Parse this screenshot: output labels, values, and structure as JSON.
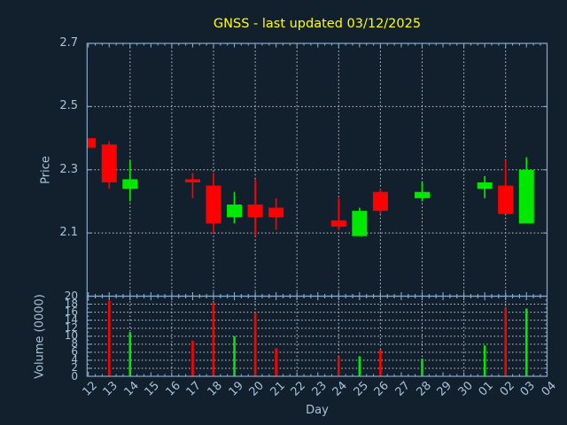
{
  "window": {
    "title": "GNSS - last updated 03/12/2025"
  },
  "colors": {
    "background": "#12202e",
    "spine": "#85aacc",
    "text": "#a8c2d8",
    "title": "#ffff00",
    "grid": "#c9cdd1",
    "up": "#00e800",
    "down": "#ff0000"
  },
  "chart_data": {
    "type": "candlestick",
    "title": "GNSS - last updated 03/12/2025",
    "xlabel": "Day",
    "legend": "none",
    "price_axis": {
      "label": "Price",
      "ticks": [
        2.7,
        2.5,
        2.3,
        2.1
      ],
      "lim": [
        1.9,
        2.7
      ],
      "grid": "dashed"
    },
    "volume_axis": {
      "label": "Volume (0000)",
      "ticks": [
        20,
        18,
        16,
        14,
        12,
        10,
        8,
        6,
        4,
        2,
        0
      ],
      "lim": [
        0,
        20
      ],
      "grid": "dashed"
    },
    "x_categories": [
      "12",
      "13",
      "14",
      "15",
      "16",
      "17",
      "18",
      "19",
      "20",
      "21",
      "22",
      "23",
      "24",
      "25",
      "26",
      "27",
      "28",
      "29",
      "30",
      "01",
      "02",
      "03",
      "04"
    ],
    "x_gridline_categories": [
      "14",
      "16",
      "18",
      "20",
      "22",
      "24",
      "26",
      "28",
      "30",
      "02",
      "04"
    ],
    "candles": [
      {
        "day": "12",
        "open": 2.4,
        "high": 2.4,
        "low": 2.37,
        "close": 2.37,
        "volume": 0
      },
      {
        "day": "13",
        "open": 2.38,
        "high": 2.39,
        "low": 2.24,
        "close": 2.26,
        "volume": 18.9
      },
      {
        "day": "14",
        "open": 2.24,
        "high": 2.33,
        "low": 2.2,
        "close": 2.27,
        "volume": 11.0
      },
      {
        "day": "17",
        "open": 2.27,
        "high": 2.29,
        "low": 2.21,
        "close": 2.26,
        "volume": 8.9
      },
      {
        "day": "18",
        "open": 2.25,
        "high": 2.29,
        "low": 2.1,
        "close": 2.13,
        "volume": 18.4
      },
      {
        "day": "19",
        "open": 2.15,
        "high": 2.23,
        "low": 2.13,
        "close": 2.19,
        "volume": 10.0
      },
      {
        "day": "20",
        "open": 2.19,
        "high": 2.27,
        "low": 2.09,
        "close": 2.15,
        "volume": 15.9
      },
      {
        "day": "21",
        "open": 2.18,
        "high": 2.21,
        "low": 2.11,
        "close": 2.15,
        "volume": 7.0
      },
      {
        "day": "24",
        "open": 2.14,
        "high": 2.21,
        "low": 2.11,
        "close": 2.12,
        "volume": 5.0
      },
      {
        "day": "25",
        "open": 2.09,
        "high": 2.18,
        "low": 2.09,
        "close": 2.17,
        "volume": 5.0
      },
      {
        "day": "26",
        "open": 2.23,
        "high": 2.24,
        "low": 2.16,
        "close": 2.17,
        "volume": 6.7
      },
      {
        "day": "28",
        "open": 2.21,
        "high": 2.26,
        "low": 2.2,
        "close": 2.23,
        "volume": 4.4
      },
      {
        "day": "01",
        "open": 2.24,
        "high": 2.28,
        "low": 2.21,
        "close": 2.26,
        "volume": 7.7
      },
      {
        "day": "02",
        "open": 2.25,
        "high": 2.33,
        "low": 2.16,
        "close": 2.16,
        "volume": 17.2
      },
      {
        "day": "03",
        "open": 2.13,
        "high": 2.34,
        "low": 2.13,
        "close": 2.3,
        "volume": 16.9
      }
    ]
  }
}
